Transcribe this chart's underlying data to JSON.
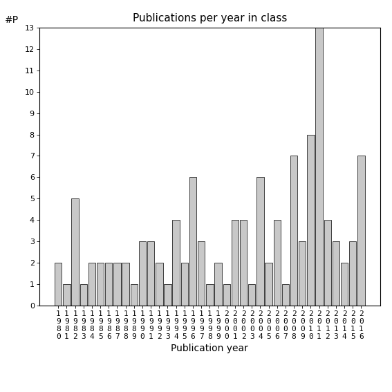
{
  "title": "Publications per year in class",
  "xlabel": "Publication year",
  "ylabel": "#P",
  "bar_color": "#c8c8c8",
  "bar_edgecolor": "#000000",
  "background_color": "#ffffff",
  "years": [
    1980,
    1981,
    1982,
    1983,
    1984,
    1985,
    1986,
    1987,
    1988,
    1989,
    1990,
    1991,
    1992,
    1993,
    1994,
    1995,
    1996,
    1997,
    1998,
    1999,
    2000,
    2001,
    2002,
    2003,
    2004,
    2005,
    2006,
    2007,
    2008,
    2009,
    2010,
    2011,
    2012,
    2013,
    2014,
    2015,
    2016
  ],
  "values": [
    2,
    1,
    5,
    1,
    2,
    2,
    2,
    2,
    2,
    1,
    3,
    3,
    2,
    1,
    4,
    2,
    6,
    3,
    1,
    2,
    1,
    4,
    4,
    1,
    6,
    2,
    4,
    1,
    7,
    3,
    8,
    13,
    4,
    3,
    2,
    3,
    7
  ],
  "ylim": [
    0,
    13
  ],
  "yticks": [
    0,
    1,
    2,
    3,
    4,
    5,
    6,
    7,
    8,
    9,
    10,
    11,
    12,
    13
  ],
  "title_fontsize": 11,
  "axis_label_fontsize": 10,
  "tick_fontsize": 8
}
